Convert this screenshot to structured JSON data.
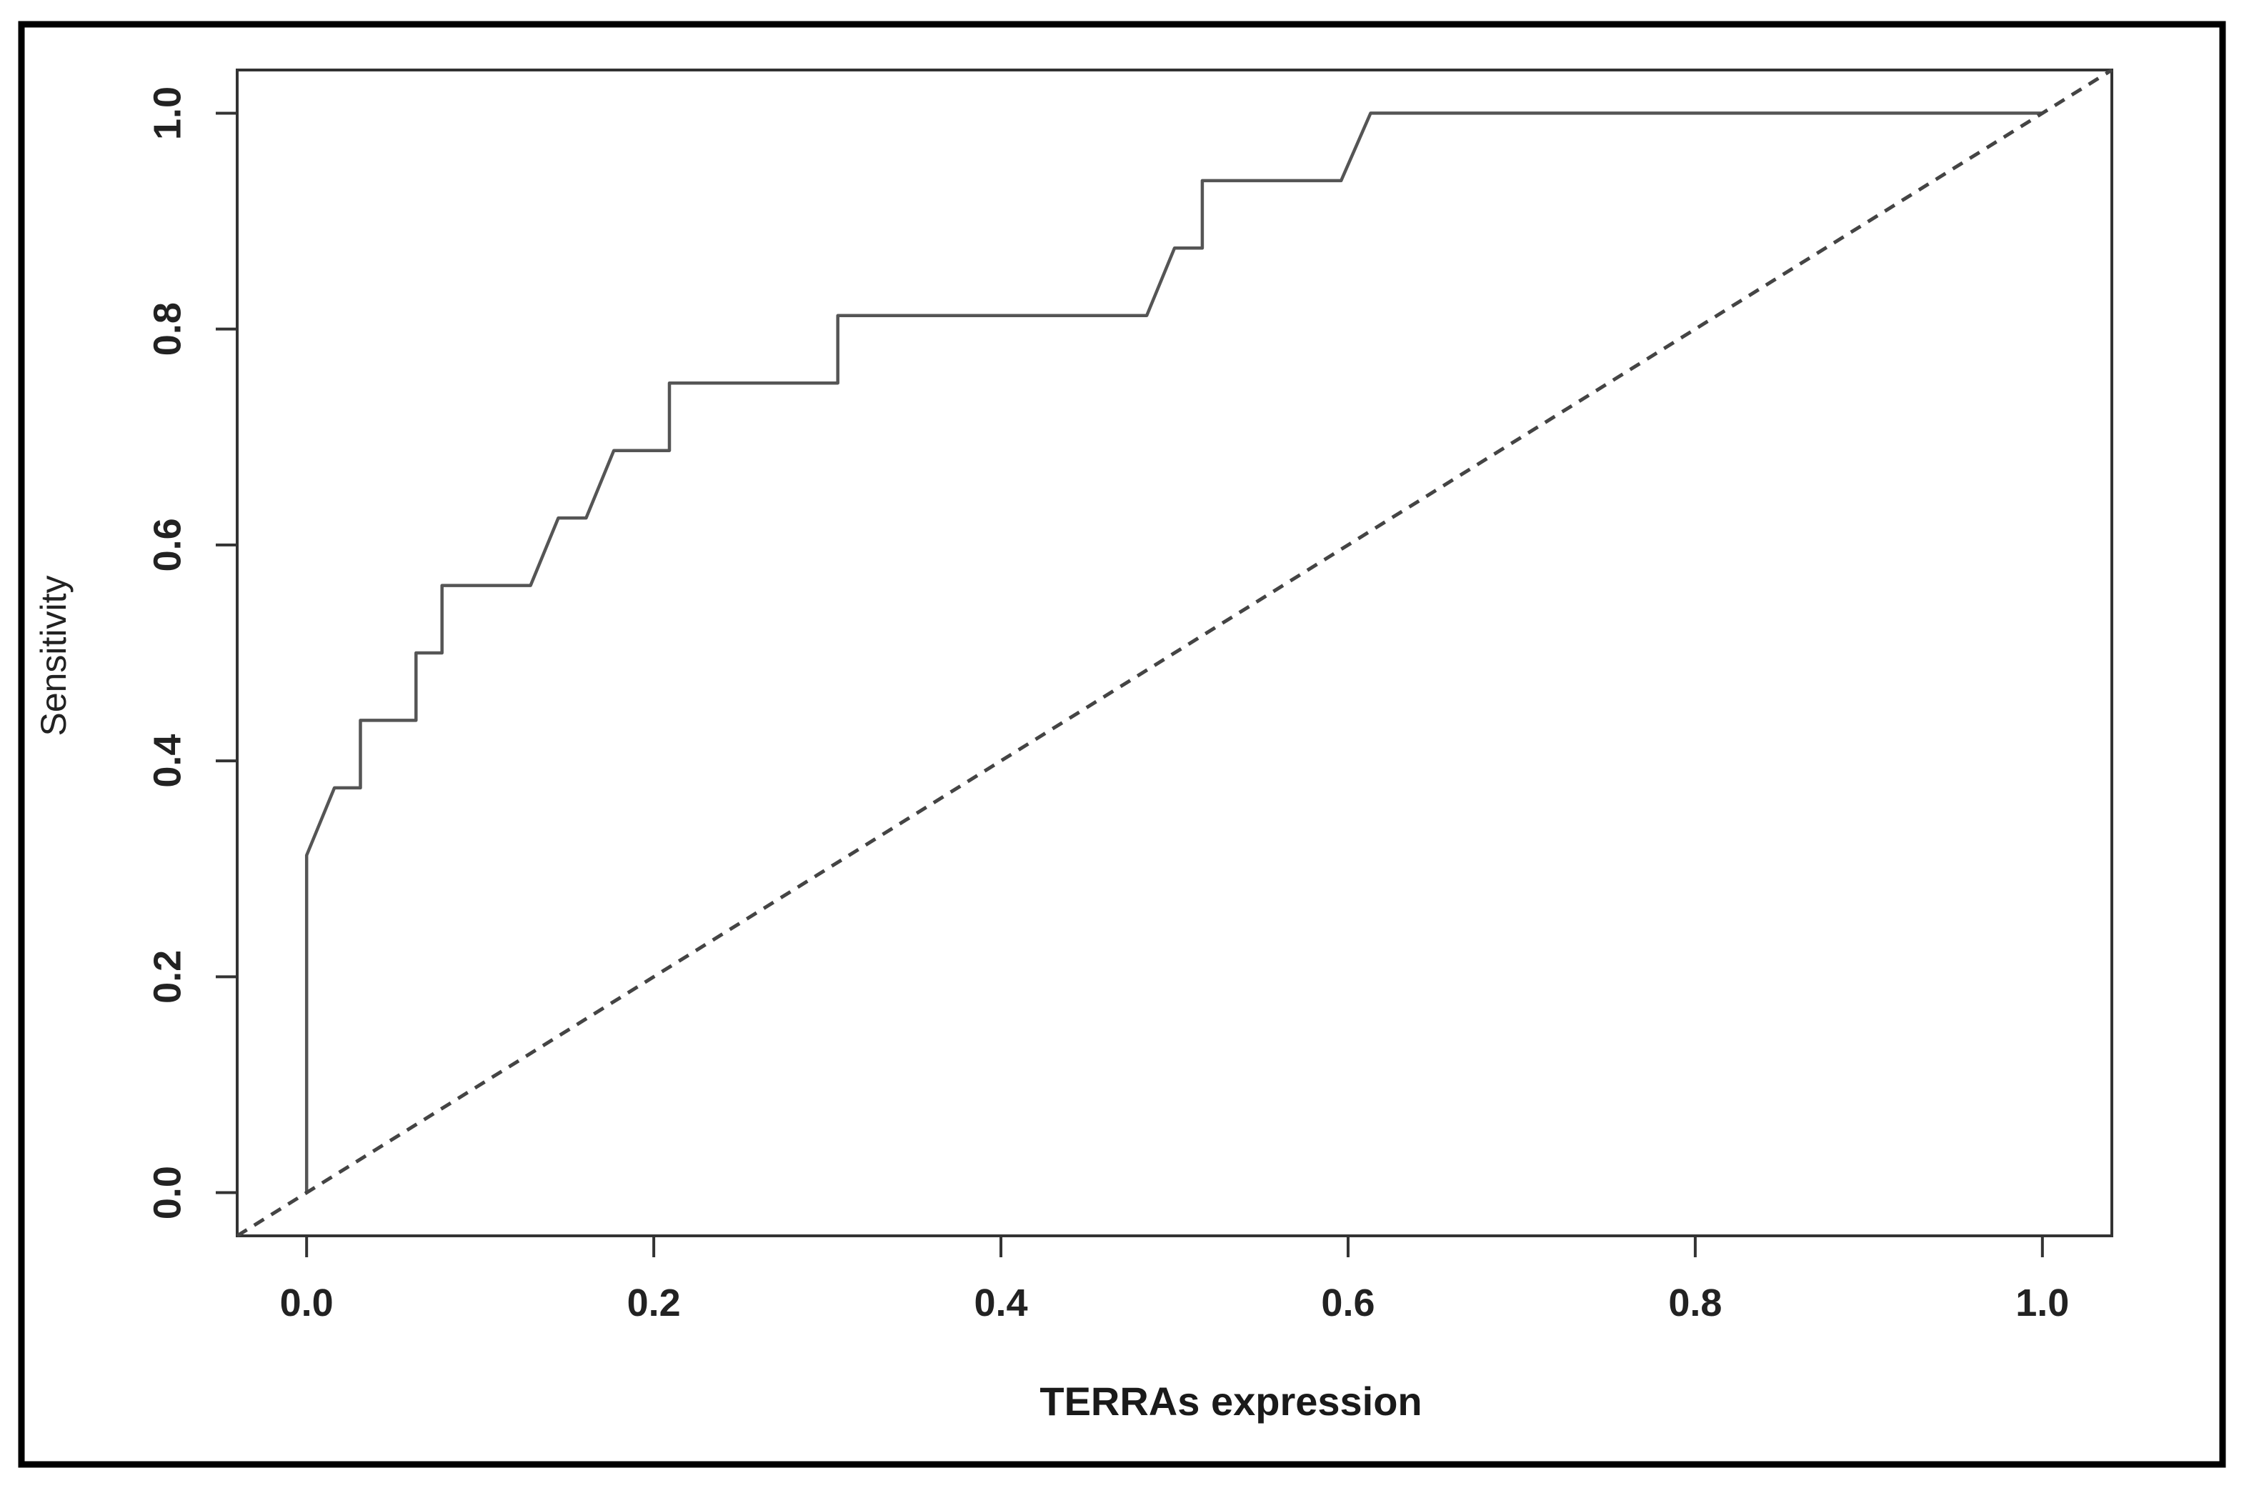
{
  "chart_data": {
    "type": "line",
    "xlabel": "TERRAs expression",
    "ylabel": "Sensitivity",
    "xlim": [
      -0.04,
      1.04
    ],
    "ylim": [
      -0.04,
      1.04
    ],
    "x_ticks": [
      "0.0",
      "0.2",
      "0.4",
      "0.6",
      "0.8",
      "1.0"
    ],
    "y_ticks": [
      "0.0",
      "0.2",
      "0.4",
      "0.6",
      "0.8",
      "1.0"
    ],
    "grid": false,
    "legend": "none",
    "series": [
      {
        "style": "solid",
        "color": "#555555",
        "points": [
          [
            0.0,
            0.0
          ],
          [
            0.0,
            0.3125
          ],
          [
            0.016,
            0.375
          ],
          [
            0.031,
            0.375
          ],
          [
            0.031,
            0.4375
          ],
          [
            0.063,
            0.4375
          ],
          [
            0.063,
            0.5
          ],
          [
            0.078,
            0.5
          ],
          [
            0.078,
            0.5625
          ],
          [
            0.129,
            0.5625
          ],
          [
            0.145,
            0.625
          ],
          [
            0.161,
            0.625
          ],
          [
            0.177,
            0.6875
          ],
          [
            0.209,
            0.6875
          ],
          [
            0.209,
            0.75
          ],
          [
            0.306,
            0.75
          ],
          [
            0.306,
            0.8125
          ],
          [
            0.484,
            0.8125
          ],
          [
            0.5,
            0.875
          ],
          [
            0.516,
            0.875
          ],
          [
            0.516,
            0.9375
          ],
          [
            0.596,
            0.9375
          ],
          [
            0.613,
            1.0
          ],
          [
            1.0,
            1.0
          ]
        ]
      },
      {
        "style": "dashed",
        "color": "#444444",
        "points": [
          [
            -0.04,
            -0.04
          ],
          [
            1.04,
            1.04
          ]
        ]
      }
    ]
  }
}
